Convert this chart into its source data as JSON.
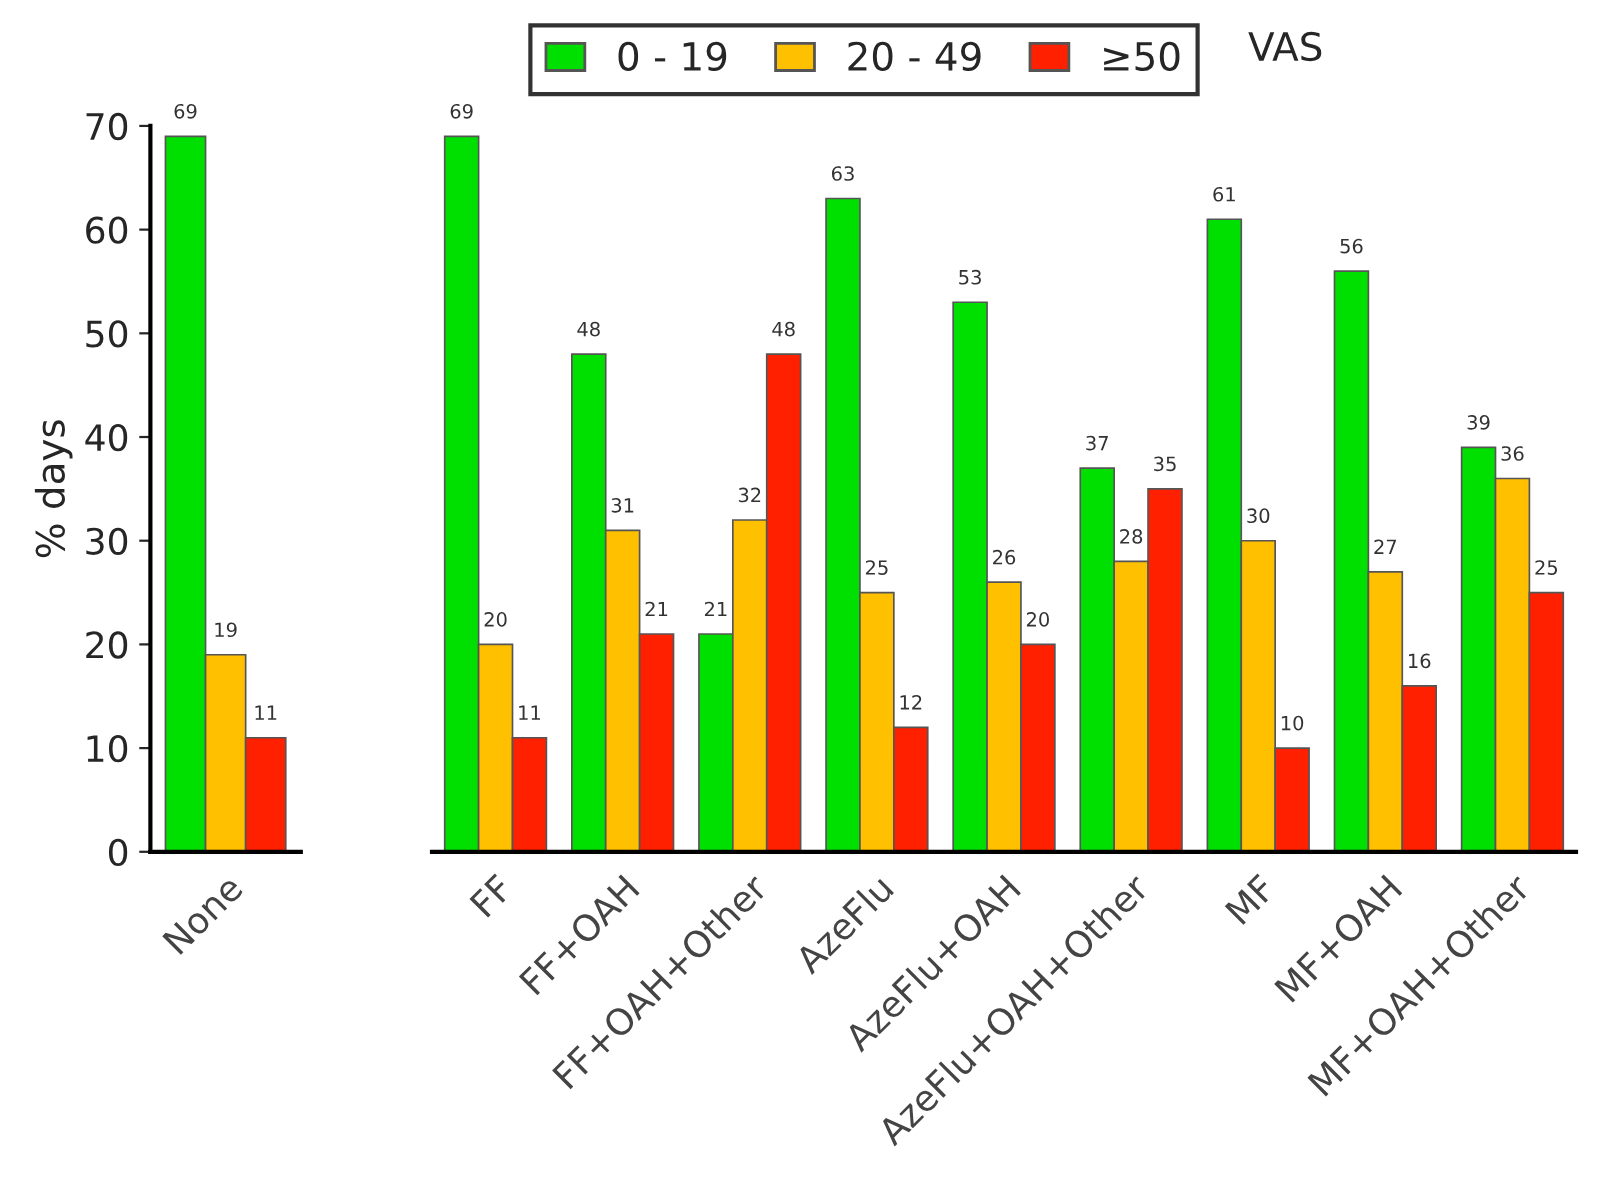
{
  "chart_data": [
    {
      "type": "bar",
      "ylabel": "% days",
      "categories": [
        "None"
      ],
      "ylim": [
        0,
        70
      ],
      "yticks": [
        0,
        10,
        20,
        30,
        40,
        50,
        60,
        70
      ],
      "data_labels": true,
      "legend": "top",
      "legend_title": "VAS",
      "series": [
        {
          "name": "0 - 19",
          "color": "#00e000",
          "values": [
            69
          ]
        },
        {
          "name": "20 - 49",
          "color": "#ffc000",
          "values": [
            19
          ]
        },
        {
          "name": "≥50",
          "color": "#ff2000",
          "values": [
            11
          ]
        }
      ]
    },
    {
      "type": "bar",
      "categories": [
        "FF",
        "FF+OAH",
        "FF+OAH+Other",
        "AzeFlu",
        "AzeFlu+OAH",
        "AzeFlu+OAH+Other",
        "MF",
        "MF+OAH",
        "MF+OAH+Other"
      ],
      "ylim": [
        0,
        70
      ],
      "tick_labels": "x",
      "data_labels": true,
      "series": [
        {
          "color": "#00e000",
          "values": [
            69,
            48,
            21,
            63,
            53,
            37,
            61,
            56,
            39
          ]
        },
        {
          "color": "#ffc000",
          "values": [
            20,
            31,
            32,
            25,
            26,
            28,
            30,
            27,
            36
          ]
        },
        {
          "color": "#ff2000",
          "values": [
            11,
            21,
            48,
            12,
            20,
            35,
            10,
            16,
            25
          ]
        }
      ]
    }
  ]
}
